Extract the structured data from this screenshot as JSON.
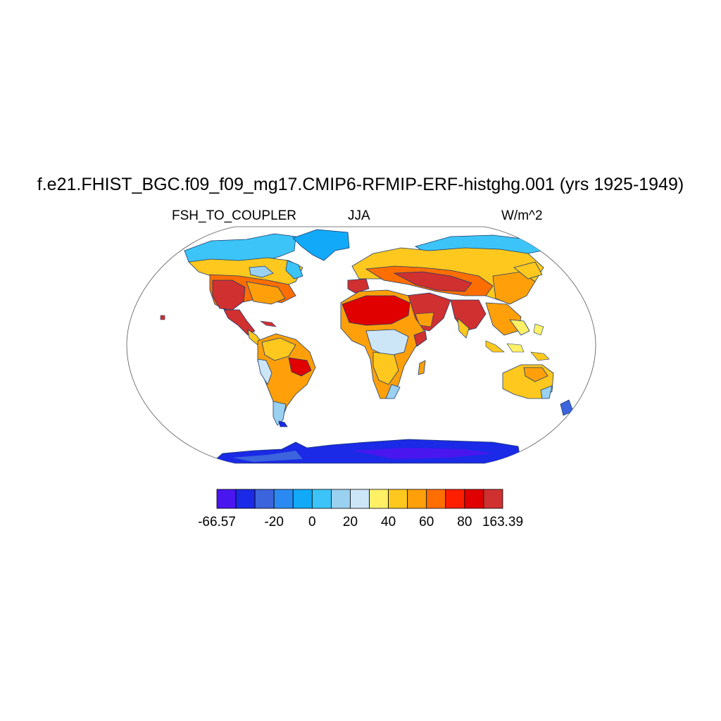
{
  "title": "f.e21.FHIST_BGC.f09_f09_mg17.CMIP6-RFMIP-ERF-histghg.001 (yrs 1925-1949)",
  "subtitle_left": "FSH_TO_COUPLER",
  "subtitle_center": "JJA",
  "subtitle_right": "W/m^2",
  "colors": {
    "ocean": "#ffffff",
    "outline": "#555555",
    "coast": "#1a3a6a"
  },
  "colorbar": {
    "colors": [
      "#4a16f0",
      "#1a2ae6",
      "#3c64dc",
      "#2a8af2",
      "#12aaf8",
      "#3cc4f8",
      "#9ad0f0",
      "#cce6f8",
      "#fff066",
      "#ffc81e",
      "#ffa00a",
      "#ff6e00",
      "#ff1e00",
      "#e00000",
      "#d03030"
    ],
    "labels": [
      {
        "text": "-66.57",
        "boundary": 0
      },
      {
        "text": "-20",
        "boundary": 3
      },
      {
        "text": "0",
        "boundary": 5
      },
      {
        "text": "20",
        "boundary": 7
      },
      {
        "text": "40",
        "boundary": 9
      },
      {
        "text": "60",
        "boundary": 11
      },
      {
        "text": "80",
        "boundary": 13
      },
      {
        "text": "163.39",
        "boundary": 15
      }
    ]
  }
}
